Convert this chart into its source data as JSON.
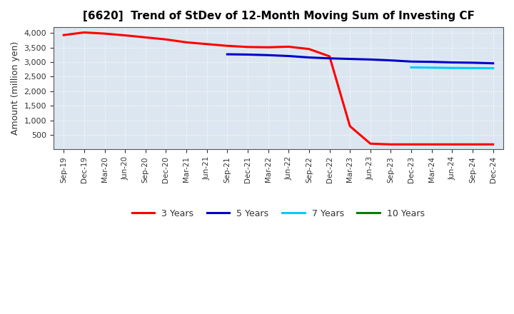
{
  "title": "[6620]  Trend of StDev of 12-Month Moving Sum of Investing CF",
  "ylabel": "Amount (million yen)",
  "background_color": "#ffffff",
  "plot_bg_color": "#dce6f0",
  "grid_color": "#ffffff",
  "tick_labels": [
    "Sep-19",
    "Dec-19",
    "Mar-20",
    "Jun-20",
    "Sep-20",
    "Dec-20",
    "Mar-21",
    "Jun-21",
    "Sep-21",
    "Dec-21",
    "Mar-22",
    "Jun-22",
    "Sep-22",
    "Dec-22",
    "Mar-23",
    "Jun-23",
    "Sep-23",
    "Dec-23",
    "Mar-24",
    "Jun-24",
    "Sep-24",
    "Dec-24"
  ],
  "series_3y": {
    "label": "3 Years",
    "color": "#ff0000",
    "x": [
      0,
      1,
      2,
      3,
      4,
      5,
      6,
      7,
      8,
      9,
      10,
      11,
      12,
      13,
      14,
      15,
      16,
      17,
      18,
      19,
      20,
      21
    ],
    "y": [
      3930,
      4020,
      3980,
      3920,
      3850,
      3780,
      3680,
      3620,
      3560,
      3520,
      3510,
      3530,
      3450,
      3200,
      800,
      200,
      175,
      175,
      175,
      175,
      175,
      175
    ]
  },
  "series_5y": {
    "label": "5 Years",
    "color": "#0000cc",
    "x": [
      8,
      9,
      10,
      11,
      12,
      13,
      14,
      15,
      16,
      17,
      18,
      19,
      20,
      21
    ],
    "y": [
      3270,
      3260,
      3240,
      3210,
      3160,
      3130,
      3110,
      3090,
      3060,
      3020,
      3010,
      2990,
      2980,
      2960
    ]
  },
  "series_7y": {
    "label": "7 Years",
    "color": "#00ccff",
    "x": [
      17,
      18,
      19,
      20,
      21
    ],
    "y": [
      2820,
      2810,
      2800,
      2795,
      2790
    ]
  },
  "series_10y": {
    "label": "10 Years",
    "color": "#008000",
    "x": [],
    "y": []
  },
  "ylim": [
    0,
    4200
  ],
  "yticks": [
    500,
    1000,
    1500,
    2000,
    2500,
    3000,
    3500,
    4000
  ]
}
